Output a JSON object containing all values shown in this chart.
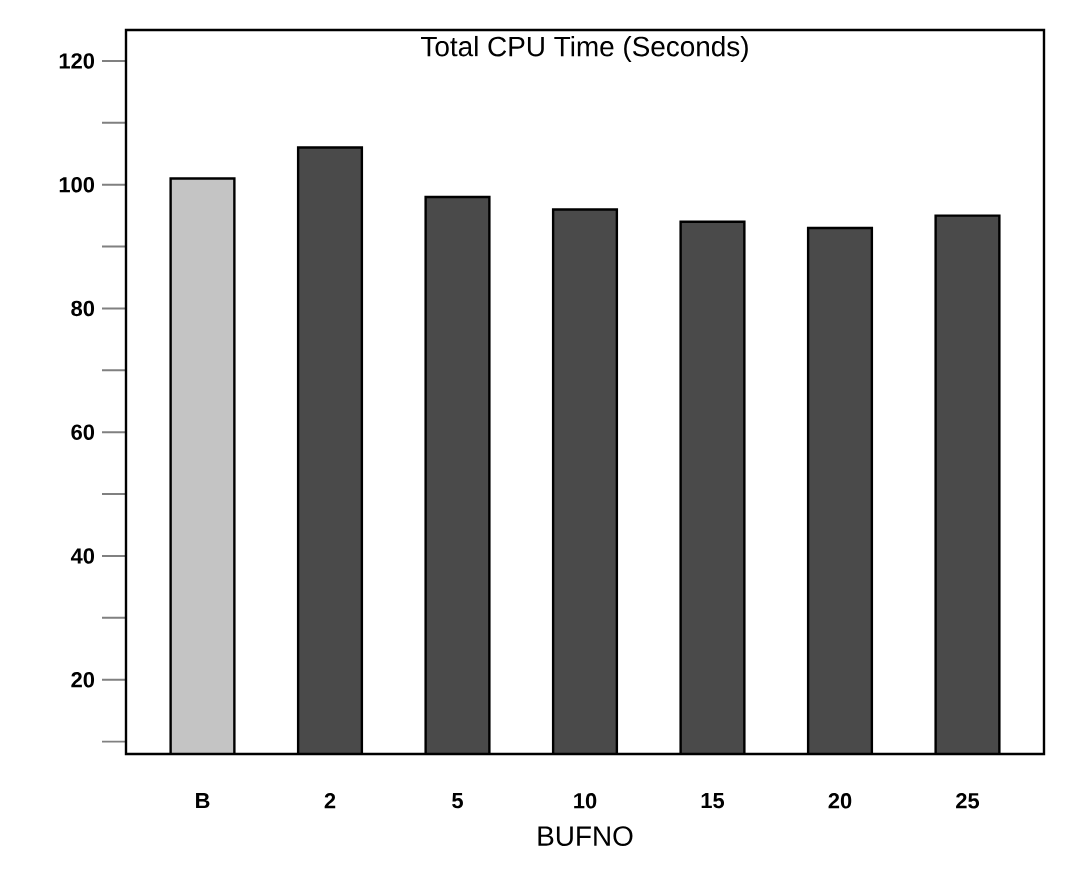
{
  "chart_data": {
    "type": "bar",
    "title": "Total CPU Time (Seconds)",
    "xlabel": "BUFNO",
    "categories": [
      "B",
      "2",
      "5",
      "10",
      "15",
      "20",
      "25"
    ],
    "values": [
      101,
      106,
      98,
      96,
      94,
      93,
      95
    ],
    "colors": [
      "#c4c4c4",
      "#4a4a4a",
      "#4a4a4a",
      "#4a4a4a",
      "#4a4a4a",
      "#4a4a4a",
      "#4a4a4a"
    ],
    "ylim": [
      8,
      125
    ],
    "yticks": [
      {
        "value": 10,
        "label": null
      },
      20,
      {
        "value": 30,
        "label": null
      },
      40,
      {
        "value": 50,
        "label": null
      },
      60,
      {
        "value": 70,
        "label": null
      },
      80,
      {
        "value": 90,
        "label": null
      },
      100,
      {
        "value": 110,
        "label": null
      },
      120
    ],
    "grid": false
  }
}
